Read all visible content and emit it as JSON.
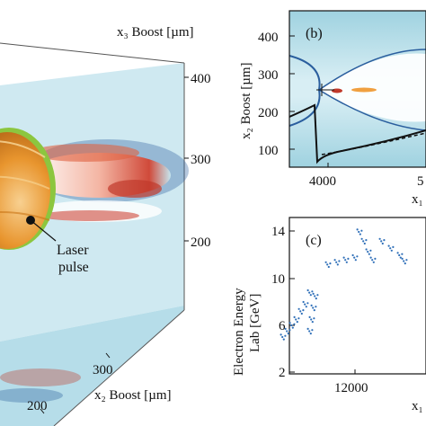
{
  "panel_a": {
    "x3_axis_label": "x₃ Boost [µm]",
    "x3_ticks": [
      "400",
      "300",
      "200"
    ],
    "x2_axis_label": "x₂ Boost [µm]",
    "x2_ticks": [
      "300",
      "200"
    ],
    "laser_label_line1": "Laser",
    "laser_label_line2": "pulse"
  },
  "panel_b": {
    "tag": "(b)",
    "ylabel": "x₂ Boost [µm]",
    "y_ticks": [
      "400",
      "300",
      "200",
      "100"
    ],
    "x_ticks": [
      "4000",
      "5"
    ],
    "xlabel_fragment": "x₁"
  },
  "panel_c": {
    "tag": "(c)",
    "ylabel_line1": "Electron Energy",
    "ylabel_line2": "Lab [GeV]",
    "y_ticks": [
      "14",
      "10",
      "6",
      "2"
    ],
    "x_ticks": [
      "12000"
    ],
    "xlabel_fragment": "x₁"
  },
  "colors": {
    "field_light_blue": "#c6e6ef",
    "field_dark_blue": "#2a5e9e",
    "laser_red": "#c0392b",
    "laser_orange": "#f0a040",
    "sphere_orange": "#e8952e",
    "sphere_green": "#8cc63f",
    "scatter_blue": "#2f6fb8"
  },
  "chart_data": [
    {
      "type": "scatter",
      "panel": "(c)",
      "ylabel": "Electron Energy Lab [GeV]",
      "y_ticks": [
        2,
        6,
        10,
        14
      ],
      "x_ticks": [
        12000
      ],
      "ylim": [
        2,
        14.5
      ],
      "clusters": [
        {
          "x": [
            11200,
            11250,
            11300,
            11350,
            11400,
            11450,
            11500
          ],
          "y": [
            5.0,
            5.5,
            6.0,
            6.5,
            7.2,
            7.8,
            8.8
          ]
        },
        {
          "x": [
            11500,
            11520,
            11540,
            11560
          ],
          "y": [
            5.5,
            6.5,
            7.5,
            8.5
          ]
        },
        {
          "x": [
            11700,
            11800,
            11900,
            12000
          ],
          "y": [
            11.2,
            11.4,
            11.6,
            11.8
          ]
        },
        {
          "x": [
            12050,
            12100,
            12150,
            12200
          ],
          "y": [
            14.0,
            13.2,
            12.3,
            11.6
          ]
        },
        {
          "x": [
            12300,
            12400,
            12500,
            12550
          ],
          "y": [
            13.2,
            12.6,
            12.0,
            11.5
          ]
        }
      ]
    }
  ]
}
